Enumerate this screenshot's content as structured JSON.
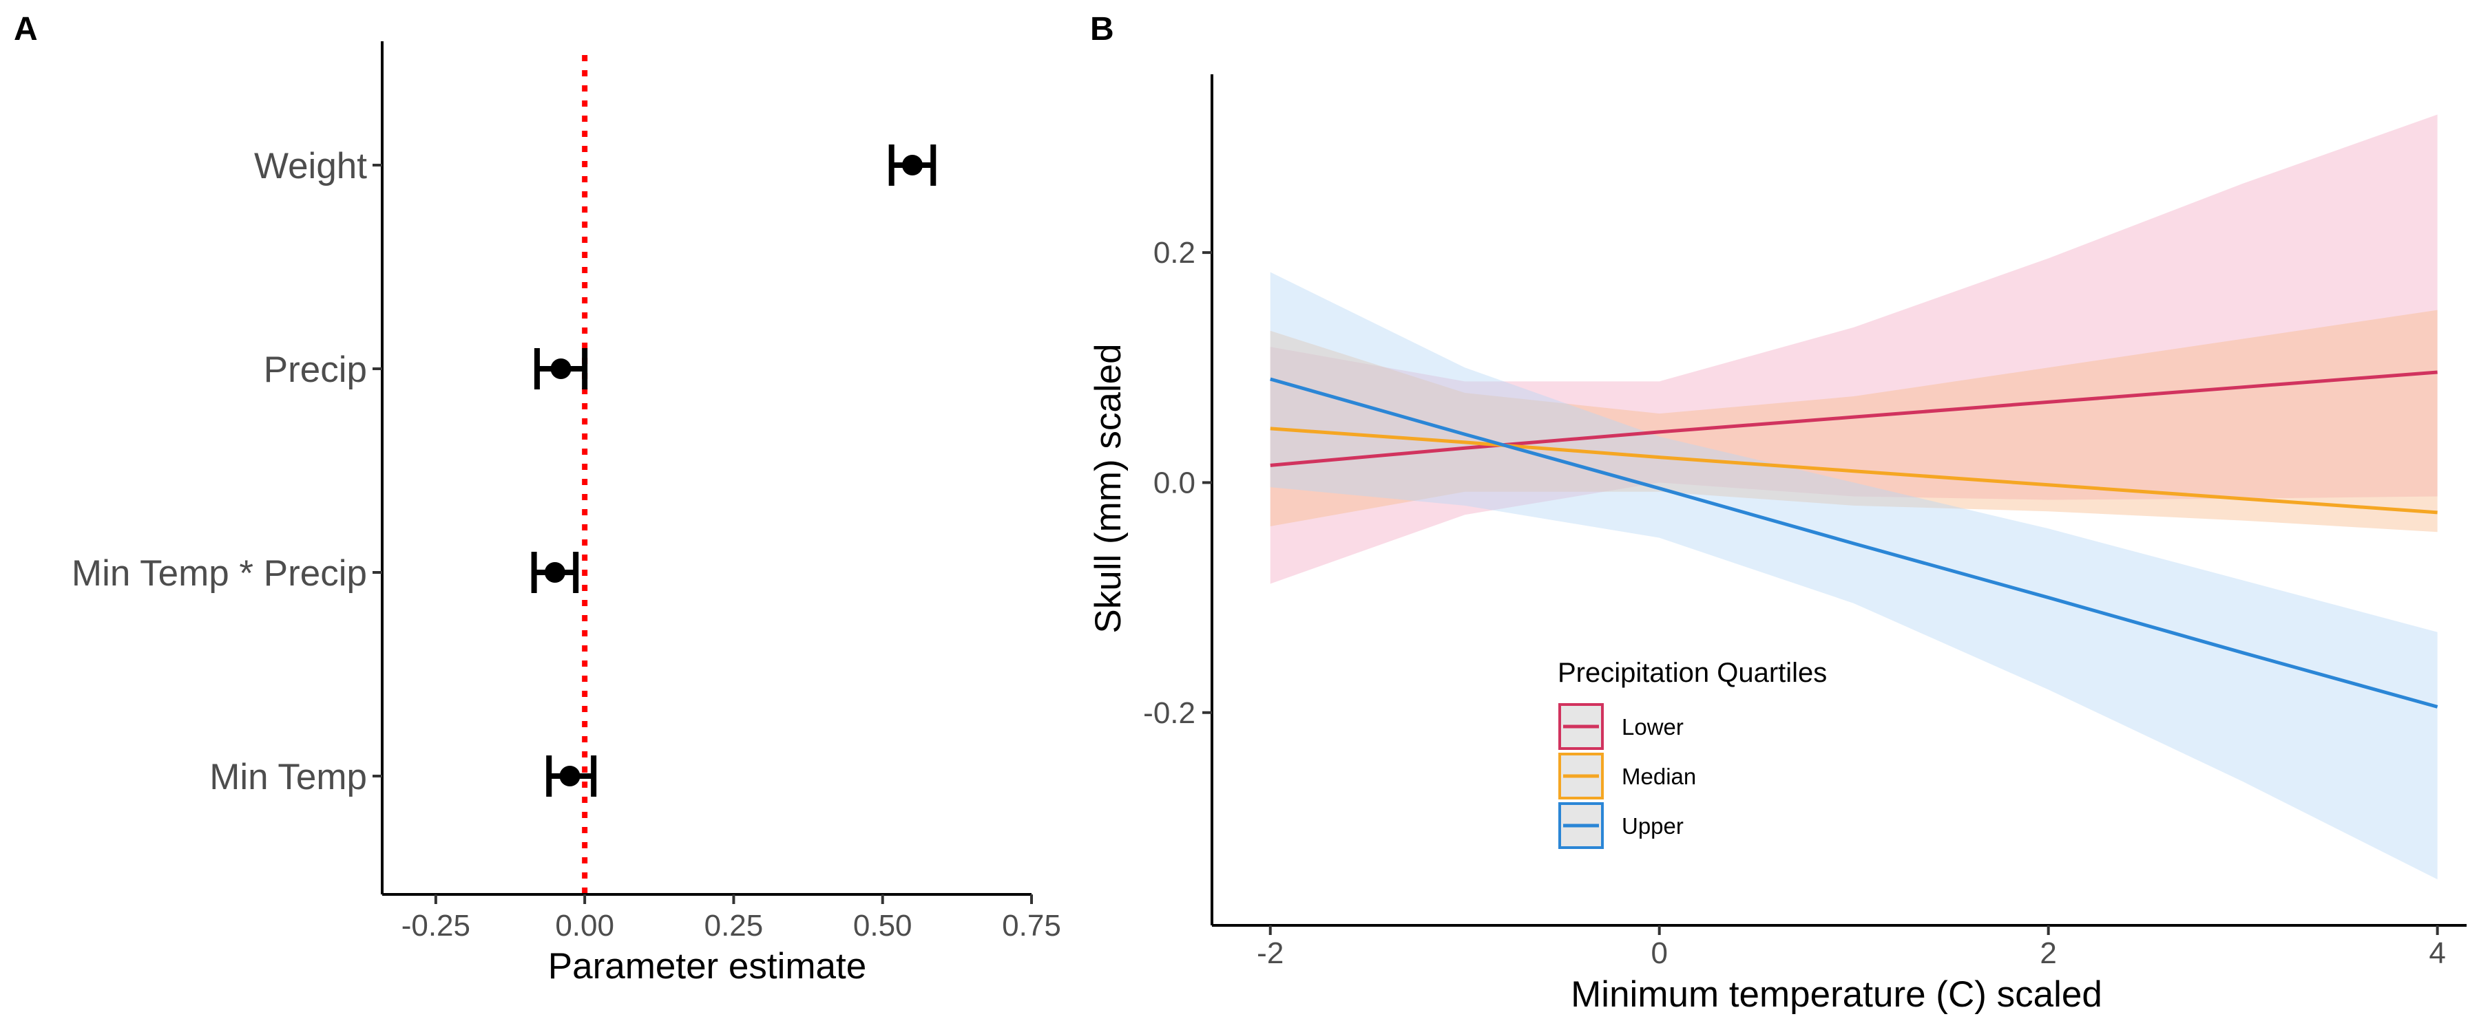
{
  "chart_data": [
    {
      "panel": "A",
      "type": "scatter",
      "subtype": "coefficient-plot",
      "xlabel": "Parameter estimate",
      "ylabel": "",
      "xlim": [
        -0.34,
        0.75
      ],
      "xticks": [
        -0.25,
        0.0,
        0.25,
        0.5,
        0.75
      ],
      "xtick_labels": [
        "-0.25",
        "0.00",
        "0.25",
        "0.50",
        "0.75"
      ],
      "reference_line": 0,
      "reference_color": "#ff0000",
      "point_color": "#000000",
      "categories": [
        "Weight",
        "Precip",
        "Min Temp * Precip",
        "Min Temp"
      ],
      "estimates": [
        0.55,
        -0.04,
        -0.05,
        -0.025
      ],
      "lower": [
        0.515,
        -0.08,
        -0.085,
        -0.06
      ],
      "upper": [
        0.585,
        0.0,
        -0.015,
        0.015
      ]
    },
    {
      "panel": "B",
      "type": "line",
      "subtype": "line-with-confidence-bands",
      "xlabel": "Minimum temperature (C) scaled",
      "ylabel": "Skull (mm) scaled",
      "xlim": [
        -2.3,
        4.15
      ],
      "ylim": [
        -0.385,
        0.355
      ],
      "xticks": [
        -2,
        0,
        2,
        4
      ],
      "xtick_labels": [
        "-2",
        "0",
        "2",
        "4"
      ],
      "yticks": [
        -0.2,
        0.0,
        0.2
      ],
      "ytick_labels": [
        "-0.2",
        "0.0",
        "0.2"
      ],
      "legend_title": "Precipitation Quartiles",
      "legend_position": "bottom-center",
      "series": [
        {
          "name": "Lower",
          "color": "#d1335e",
          "fill": "#f4a9c3",
          "x": [
            -2,
            -1,
            0,
            1,
            2,
            3,
            4
          ],
          "y": [
            0.015,
            0.03,
            0.044,
            0.057,
            0.07,
            0.083,
            0.096
          ],
          "lo": [
            -0.088,
            -0.028,
            0.0,
            -0.012,
            -0.015,
            -0.014,
            -0.012
          ],
          "hi": [
            0.118,
            0.088,
            0.088,
            0.135,
            0.195,
            0.26,
            0.32
          ]
        },
        {
          "name": "Median",
          "color": "#f5a623",
          "fill": "#f9b98a",
          "x": [
            -2,
            -1,
            0,
            1,
            2,
            3,
            4
          ],
          "y": [
            0.047,
            0.035,
            0.022,
            0.01,
            -0.002,
            -0.014,
            -0.026
          ],
          "lo": [
            -0.038,
            -0.008,
            -0.008,
            -0.02,
            -0.025,
            -0.033,
            -0.043
          ],
          "hi": [
            0.132,
            0.078,
            0.06,
            0.075,
            0.1,
            0.125,
            0.15
          ]
        },
        {
          "name": "Upper",
          "color": "#2b86d6",
          "fill": "#b5d6f5",
          "x": [
            -2,
            -1,
            0,
            1,
            2,
            3,
            4
          ],
          "y": [
            0.09,
            0.042,
            -0.005,
            -0.053,
            -0.1,
            -0.148,
            -0.195
          ],
          "lo": [
            -0.004,
            -0.02,
            -0.048,
            -0.105,
            -0.18,
            -0.26,
            -0.345
          ],
          "hi": [
            0.183,
            0.1,
            0.04,
            0.0,
            -0.04,
            -0.085,
            -0.13
          ]
        }
      ]
    }
  ]
}
